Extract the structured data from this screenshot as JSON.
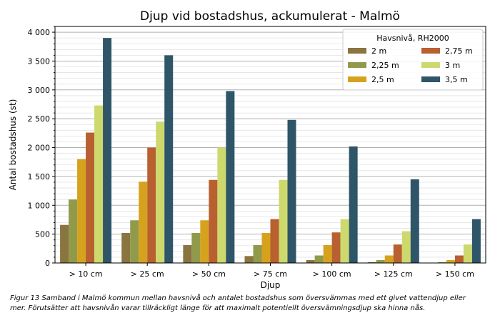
{
  "chart_data": {
    "type": "bar",
    "title": "Djup vid bostadshus, ackumulerat - Malmö",
    "xlabel": "Djup",
    "ylabel": "Antal bostadshus (st)",
    "ylim": [
      0,
      4100
    ],
    "yticks": [
      {
        "value": 0,
        "label": "0"
      },
      {
        "value": 500,
        "label": "500"
      },
      {
        "value": 1000,
        "label": "1 000"
      },
      {
        "value": 1500,
        "label": "1 500"
      },
      {
        "value": 2000,
        "label": "2 000"
      },
      {
        "value": 2500,
        "label": "2 500"
      },
      {
        "value": 3000,
        "label": "3 000"
      },
      {
        "value": 3500,
        "label": "3 500"
      },
      {
        "value": 4000,
        "label": "4 000"
      }
    ],
    "grid": true,
    "categories": [
      "> 10 cm",
      "> 25 cm",
      "> 50 cm",
      "> 75 cm",
      "> 100 cm",
      "> 125 cm",
      "> 150 cm"
    ],
    "legend_title": "Havsnivå, RH2000",
    "legend_position": "top-right",
    "series": [
      {
        "name": "2 m",
        "color": "#8a7440",
        "values": [
          660,
          520,
          310,
          120,
          50,
          15,
          5
        ]
      },
      {
        "name": "2,25 m",
        "color": "#919a4a",
        "values": [
          1100,
          740,
          520,
          310,
          130,
          50,
          15
        ]
      },
      {
        "name": "2,5 m",
        "color": "#d6a21e",
        "values": [
          1800,
          1410,
          740,
          520,
          310,
          130,
          50
        ]
      },
      {
        "name": "2,75 m",
        "color": "#b8602f",
        "values": [
          2260,
          2000,
          1440,
          760,
          530,
          320,
          130
        ]
      },
      {
        "name": "3 m",
        "color": "#cdd96d",
        "values": [
          2730,
          2450,
          2000,
          1440,
          760,
          550,
          320
        ]
      },
      {
        "name": "3,5 m",
        "color": "#2e5568",
        "values": [
          3900,
          3600,
          2980,
          2480,
          2020,
          1450,
          760
        ]
      }
    ]
  },
  "caption": "Figur 13 Samband i Malmö kommun mellan havsnivå och antalet bostadshus som översvämmas med ett givet vattendjup eller mer. Förutsätter att havsnivån varar tillräckligt länge för att maximalt potentiellt översvämningsdjup ska hinna nås."
}
